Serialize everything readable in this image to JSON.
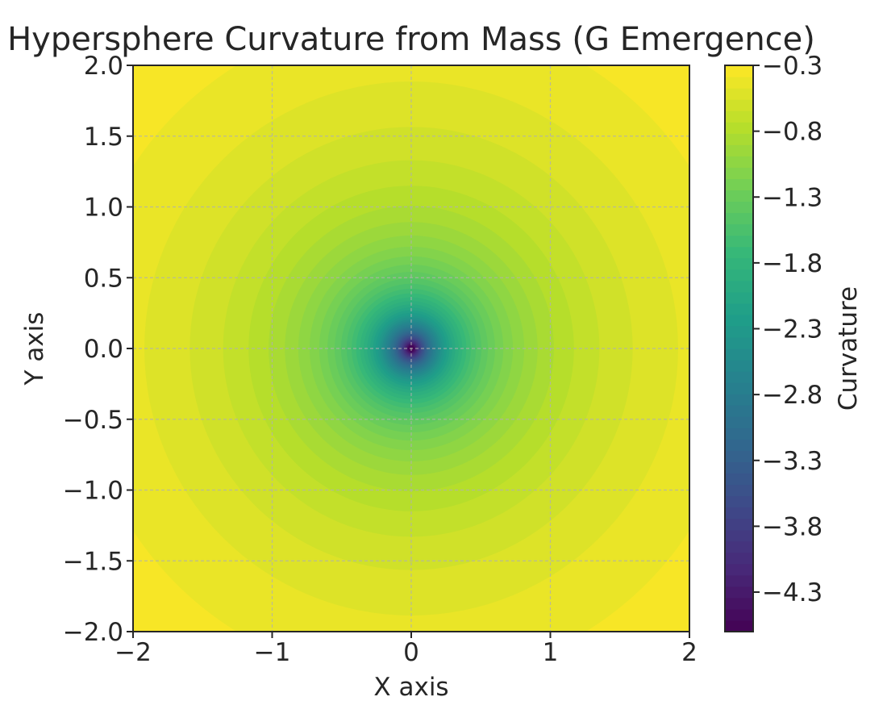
{
  "chart_data": {
    "type": "heatmap",
    "subtype": "filled-contour",
    "title": "Hypersphere Curvature from Mass (G Emergence)",
    "xlabel": "X axis",
    "ylabel": "Y axis",
    "xlim": [
      -2,
      2
    ],
    "ylim": [
      -2,
      2
    ],
    "x_ticks": [
      -2,
      -1,
      0,
      1,
      2
    ],
    "x_tick_labels": [
      "−2",
      "−1",
      "0",
      "1",
      "2"
    ],
    "y_ticks": [
      2.0,
      1.5,
      1.0,
      0.5,
      0.0,
      -0.5,
      -1.0,
      -1.5,
      -2.0
    ],
    "y_tick_labels": [
      "2.0",
      "1.5",
      "1.0",
      "0.5",
      "0.0",
      "−0.5",
      "−1.0",
      "−1.5",
      "−2.0"
    ],
    "grid": true,
    "grid_style": "dashed",
    "colormap": "viridis",
    "field": "curvature = -1 / (r + 0.2), r = sqrt(x^2 + y^2)",
    "center": [
      0,
      0
    ],
    "value_range": [
      -4.6,
      -0.3
    ],
    "colorbar": {
      "label": "Curvature",
      "range": [
        -4.6,
        -0.3
      ],
      "ticks": [
        -0.3,
        -0.8,
        -1.3,
        -1.8,
        -2.3,
        -2.8,
        -3.3,
        -3.8,
        -4.3
      ],
      "tick_labels": [
        "−0.3",
        "−0.8",
        "−1.3",
        "−1.8",
        "−2.3",
        "−2.8",
        "−3.3",
        "−3.8",
        "−4.3"
      ],
      "levels": 50,
      "placement": "right"
    }
  }
}
